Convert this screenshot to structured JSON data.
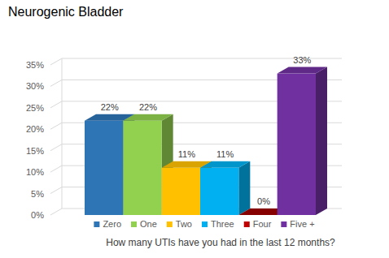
{
  "chart_data": {
    "type": "bar",
    "title": "Neurogenic Bladder",
    "x_label": "How many UTIs have you had in the last 12 months?",
    "categories": [
      "Zero",
      "One",
      "Two",
      "Three",
      "Four",
      "Five +"
    ],
    "values": [
      22,
      22,
      11,
      11,
      0,
      33
    ],
    "value_labels": [
      "22%",
      "22%",
      "11%",
      "11%",
      "0%",
      "33%"
    ],
    "colors": [
      "#2e75b6",
      "#92d050",
      "#ffc000",
      "#00b0f0",
      "#c00000",
      "#7030a0"
    ],
    "ylim": [
      0,
      35
    ],
    "yticks": [
      {
        "value": 0,
        "label": "0%"
      },
      {
        "value": 5,
        "label": "5%"
      },
      {
        "value": 10,
        "label": "10%"
      },
      {
        "value": 15,
        "label": "15%"
      },
      {
        "value": 20,
        "label": "20%"
      },
      {
        "value": 25,
        "label": "25%"
      },
      {
        "value": 30,
        "label": "30%"
      },
      {
        "value": 35,
        "label": "35%"
      }
    ],
    "grid": true,
    "data_labels": true,
    "legend": "bottom",
    "tick_labels": "y"
  }
}
